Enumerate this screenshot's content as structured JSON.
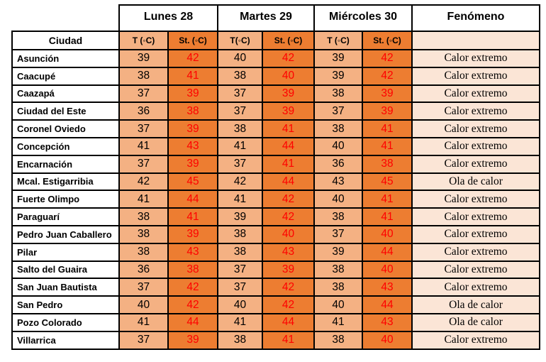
{
  "colors": {
    "t_col_bg": "#F4B183",
    "st_col_bg": "#ED7D31",
    "phenomenon_bg": "#FBE5D6",
    "st_value_text": "#FF0000",
    "border": "#000000"
  },
  "header": {
    "city_label": "Ciudad",
    "days": [
      "Lunes 28",
      "Martes 29",
      "Miércoles 30"
    ],
    "phenomenon_label": "Fenómeno",
    "subheaders": [
      "T (◦C)",
      "St. (◦C)",
      "T(◦C)",
      "St. (◦C)",
      "T (◦C)",
      "St. (◦C)"
    ]
  },
  "rows": [
    {
      "city": "Asunción",
      "values": [
        39,
        42,
        40,
        42,
        39,
        42
      ],
      "phenomenon": "Calor extremo"
    },
    {
      "city": "Caacupé",
      "values": [
        38,
        41,
        38,
        40,
        39,
        42
      ],
      "phenomenon": "Calor extremo"
    },
    {
      "city": "Caazapá",
      "values": [
        37,
        39,
        37,
        39,
        38,
        39
      ],
      "phenomenon": "Calor extremo"
    },
    {
      "city": "Ciudad del Este",
      "values": [
        36,
        38,
        37,
        39,
        37,
        39
      ],
      "phenomenon": "Calor extremo"
    },
    {
      "city": "Coronel Oviedo",
      "values": [
        37,
        39,
        38,
        41,
        38,
        41
      ],
      "phenomenon": "Calor extremo"
    },
    {
      "city": "Concepción",
      "values": [
        41,
        43,
        41,
        44,
        40,
        41
      ],
      "phenomenon": "Calor extremo"
    },
    {
      "city": "Encarnación",
      "values": [
        37,
        39,
        37,
        41,
        36,
        38
      ],
      "phenomenon": "Calor extremo"
    },
    {
      "city": "Mcal. Estigarribia",
      "values": [
        42,
        45,
        42,
        44,
        43,
        45
      ],
      "phenomenon": "Ola de calor"
    },
    {
      "city": "Fuerte Olimpo",
      "values": [
        41,
        44,
        41,
        42,
        40,
        41
      ],
      "phenomenon": "Calor extremo"
    },
    {
      "city": "Paraguarí",
      "values": [
        38,
        41,
        39,
        42,
        38,
        41
      ],
      "phenomenon": "Calor extremo"
    },
    {
      "city": "Pedro Juan Caballero",
      "values": [
        38,
        39,
        38,
        40,
        37,
        40
      ],
      "phenomenon": "Calor extremo"
    },
    {
      "city": "Pilar",
      "values": [
        38,
        43,
        38,
        43,
        39,
        44
      ],
      "phenomenon": "Calor extremo"
    },
    {
      "city": "Salto del Guaira",
      "values": [
        36,
        38,
        37,
        39,
        38,
        40
      ],
      "phenomenon": "Calor extremo"
    },
    {
      "city": "San Juan Bautista",
      "values": [
        37,
        42,
        37,
        42,
        38,
        43
      ],
      "phenomenon": "Calor extremo"
    },
    {
      "city": "San Pedro",
      "values": [
        40,
        42,
        40,
        42,
        40,
        44
      ],
      "phenomenon": "Ola de calor"
    },
    {
      "city": "Pozo Colorado",
      "values": [
        41,
        44,
        41,
        44,
        41,
        43
      ],
      "phenomenon": "Ola de calor"
    },
    {
      "city": "Villarrica",
      "values": [
        37,
        39,
        38,
        41,
        38,
        40
      ],
      "phenomenon": "Calor extremo"
    }
  ]
}
